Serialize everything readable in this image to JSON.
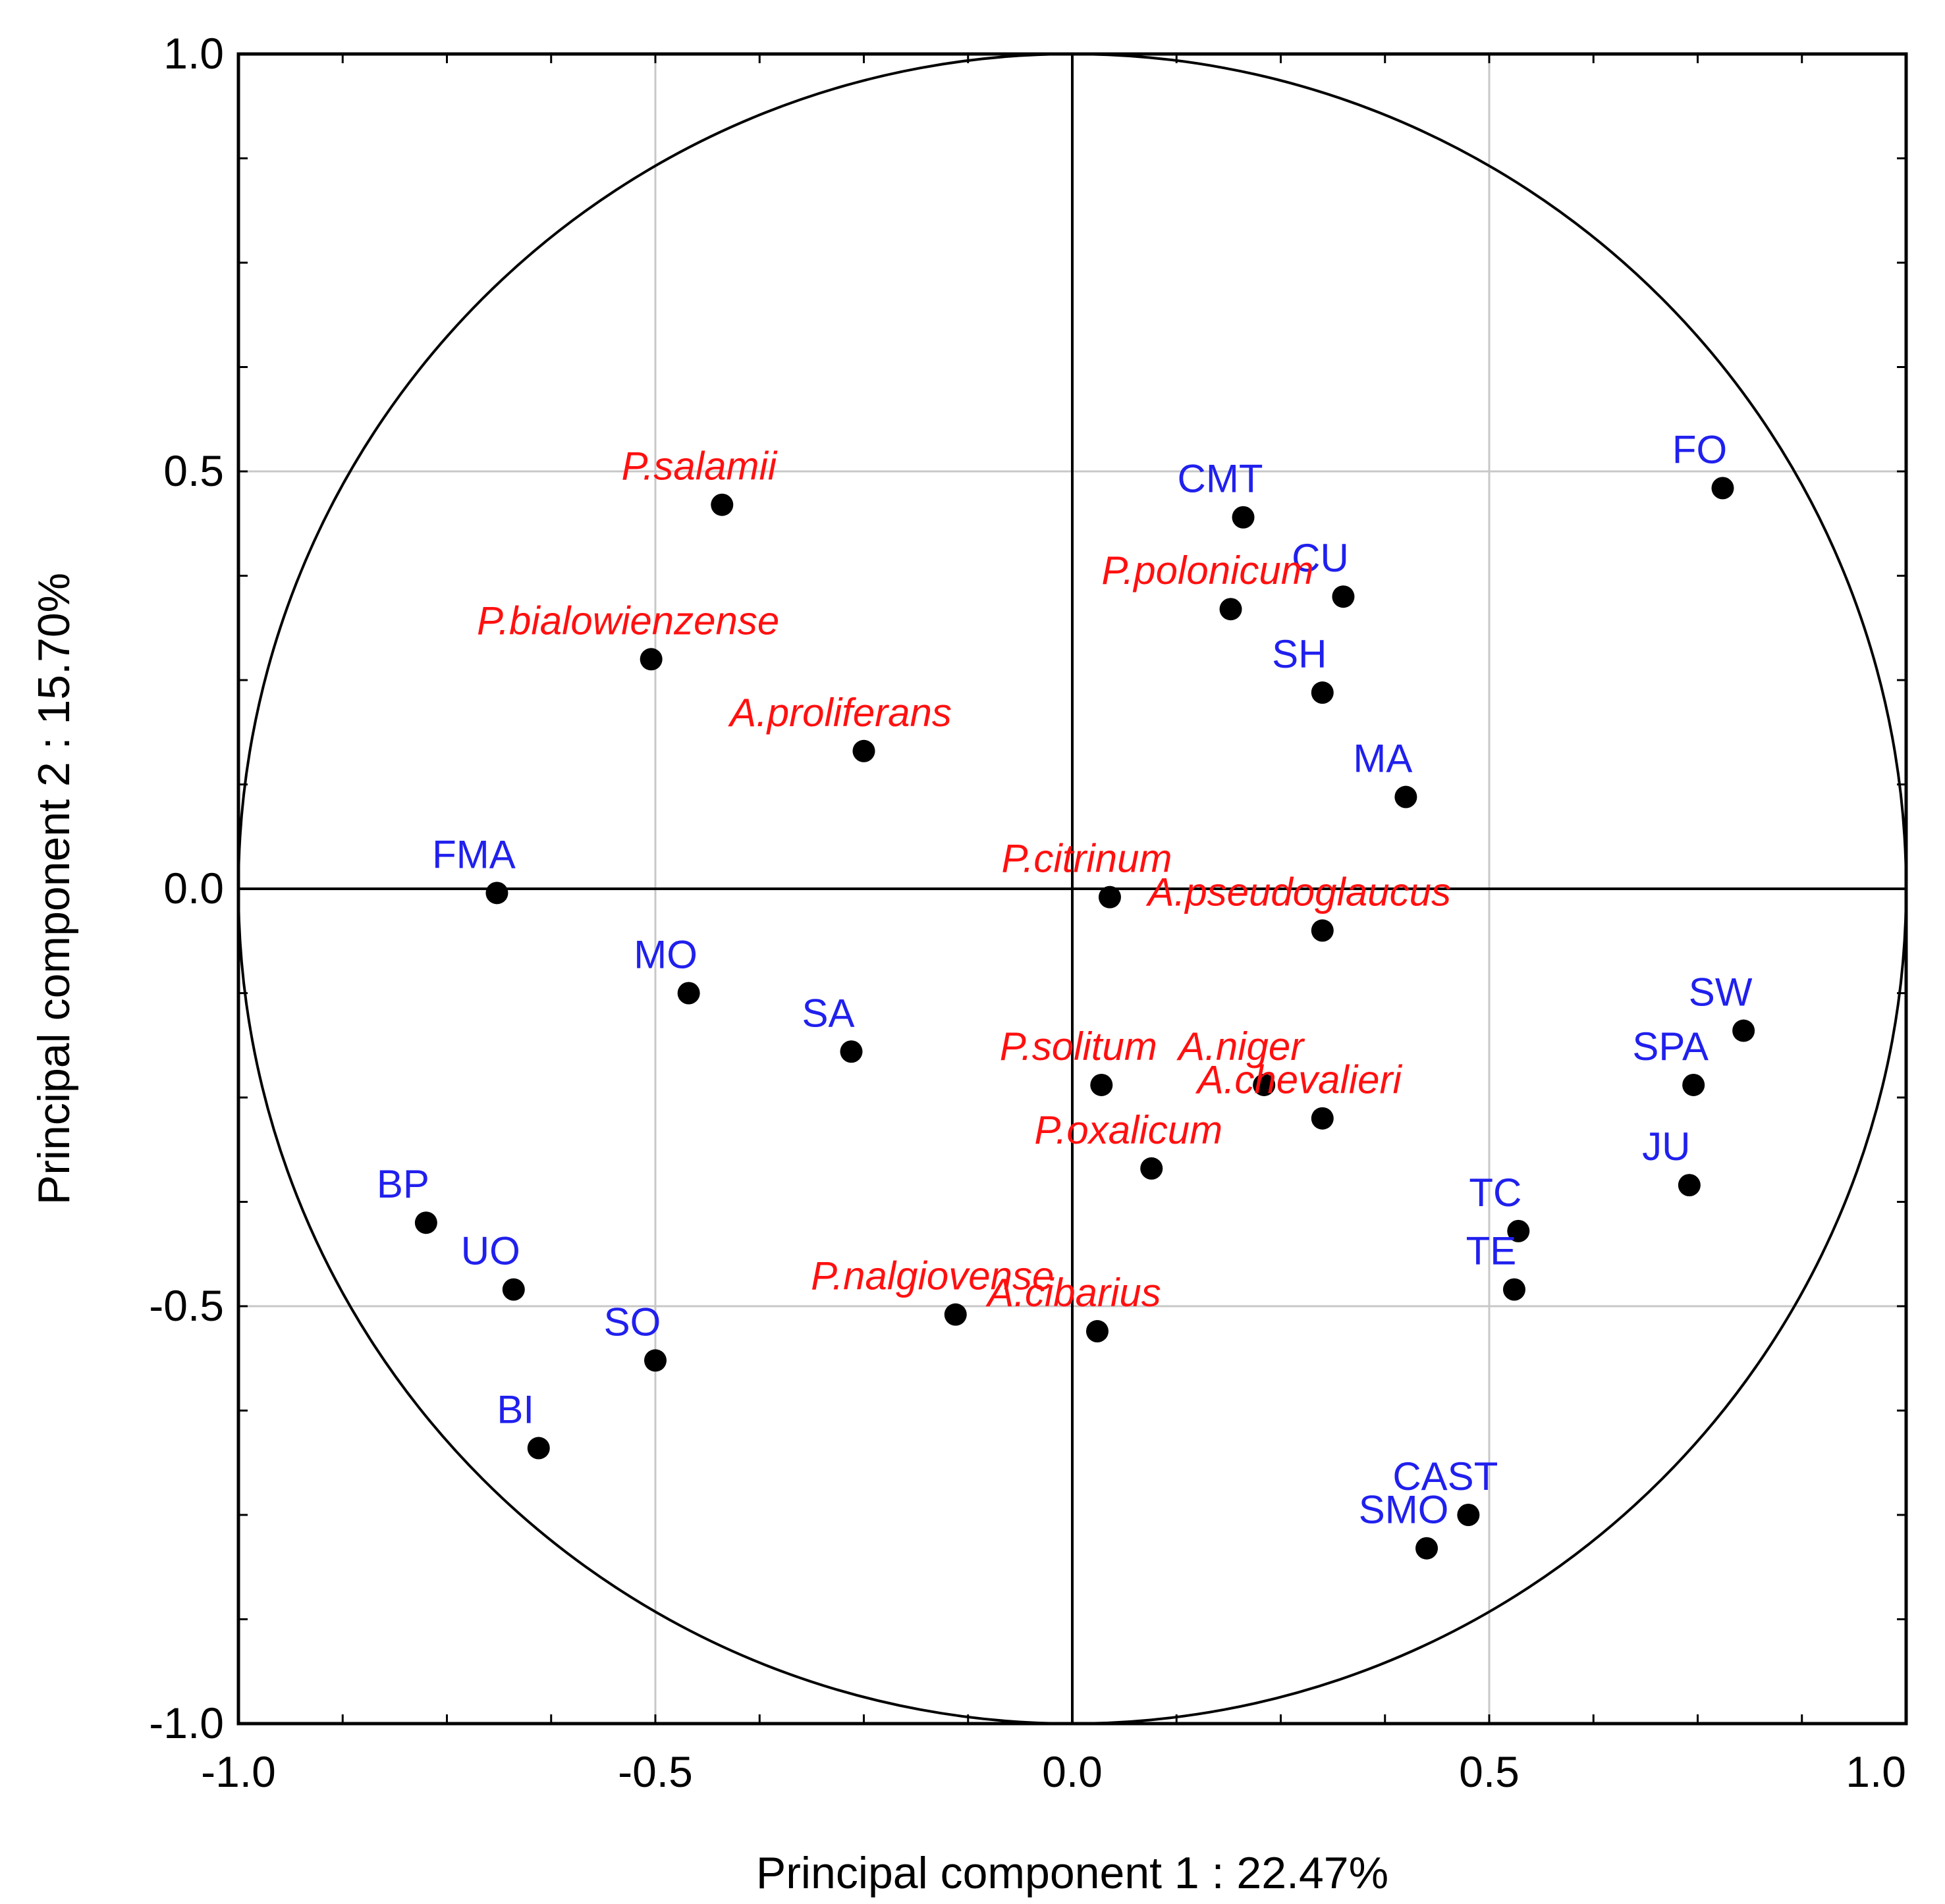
{
  "chart_data": {
    "type": "scatter",
    "title": "",
    "xlabel": "Principal component 1 : 22.47%",
    "ylabel": "Principal component 2 : 15.70%",
    "xlim": [
      -1.0,
      1.0
    ],
    "ylim": [
      -1.0,
      1.0
    ],
    "xticks": [
      "-1.0",
      "-0.5",
      "0.0",
      "0.5",
      "1.0"
    ],
    "yticks": [
      "-1.0",
      "-0.5",
      "0.0",
      "0.5",
      "1.0"
    ],
    "grid": true,
    "unit_circle": true,
    "colors": {
      "variables": "#2020ee",
      "species": "#ff1010",
      "points": "#000000"
    },
    "series": [
      {
        "name": "variables",
        "color": "#2020ee",
        "points": [
          {
            "label": "FO",
            "x": 0.78,
            "y": 0.48
          },
          {
            "label": "CMT",
            "x": 0.205,
            "y": 0.445
          },
          {
            "label": "CU",
            "x": 0.325,
            "y": 0.35
          },
          {
            "label": "SH",
            "x": 0.3,
            "y": 0.235
          },
          {
            "label": "MA",
            "x": 0.4,
            "y": 0.11
          },
          {
            "label": "FMA",
            "x": -0.69,
            "y": -0.005
          },
          {
            "label": "MO",
            "x": -0.46,
            "y": -0.125
          },
          {
            "label": "SA",
            "x": -0.265,
            "y": -0.195
          },
          {
            "label": "SW",
            "x": 0.805,
            "y": -0.17
          },
          {
            "label": "SPA",
            "x": 0.745,
            "y": -0.235
          },
          {
            "label": "JU",
            "x": 0.74,
            "y": -0.355
          },
          {
            "label": "TC",
            "x": 0.535,
            "y": -0.41
          },
          {
            "label": "TE",
            "x": 0.53,
            "y": -0.48
          },
          {
            "label": "BP",
            "x": -0.775,
            "y": -0.4
          },
          {
            "label": "UO",
            "x": -0.67,
            "y": -0.48
          },
          {
            "label": "SO",
            "x": -0.5,
            "y": -0.565
          },
          {
            "label": "BI",
            "x": -0.64,
            "y": -0.67
          },
          {
            "label": "CAST",
            "x": 0.475,
            "y": -0.75
          },
          {
            "label": "SMO",
            "x": 0.425,
            "y": -0.79
          }
        ]
      },
      {
        "name": "species",
        "color": "#ff1010",
        "points": [
          {
            "label": "P.salamii",
            "x": -0.42,
            "y": 0.46
          },
          {
            "label": "P.bialowienzense",
            "x": -0.505,
            "y": 0.275
          },
          {
            "label": "A.proliferans",
            "x": -0.25,
            "y": 0.165
          },
          {
            "label": "P.polonicum",
            "x": 0.19,
            "y": 0.335
          },
          {
            "label": "P.citrinum",
            "x": 0.045,
            "y": -0.01
          },
          {
            "label": "A.pseudoglaucus",
            "x": 0.3,
            "y": -0.05
          },
          {
            "label": "P.solitum",
            "x": 0.035,
            "y": -0.235
          },
          {
            "label": "A.niger",
            "x": 0.23,
            "y": -0.235
          },
          {
            "label": "A.chevalieri",
            "x": 0.3,
            "y": -0.275
          },
          {
            "label": "P.oxalicum",
            "x": 0.095,
            "y": -0.335
          },
          {
            "label": "P.nalgiovense",
            "x": -0.14,
            "y": -0.51
          },
          {
            "label": "A.cibarius",
            "x": 0.03,
            "y": -0.53
          }
        ]
      }
    ]
  }
}
